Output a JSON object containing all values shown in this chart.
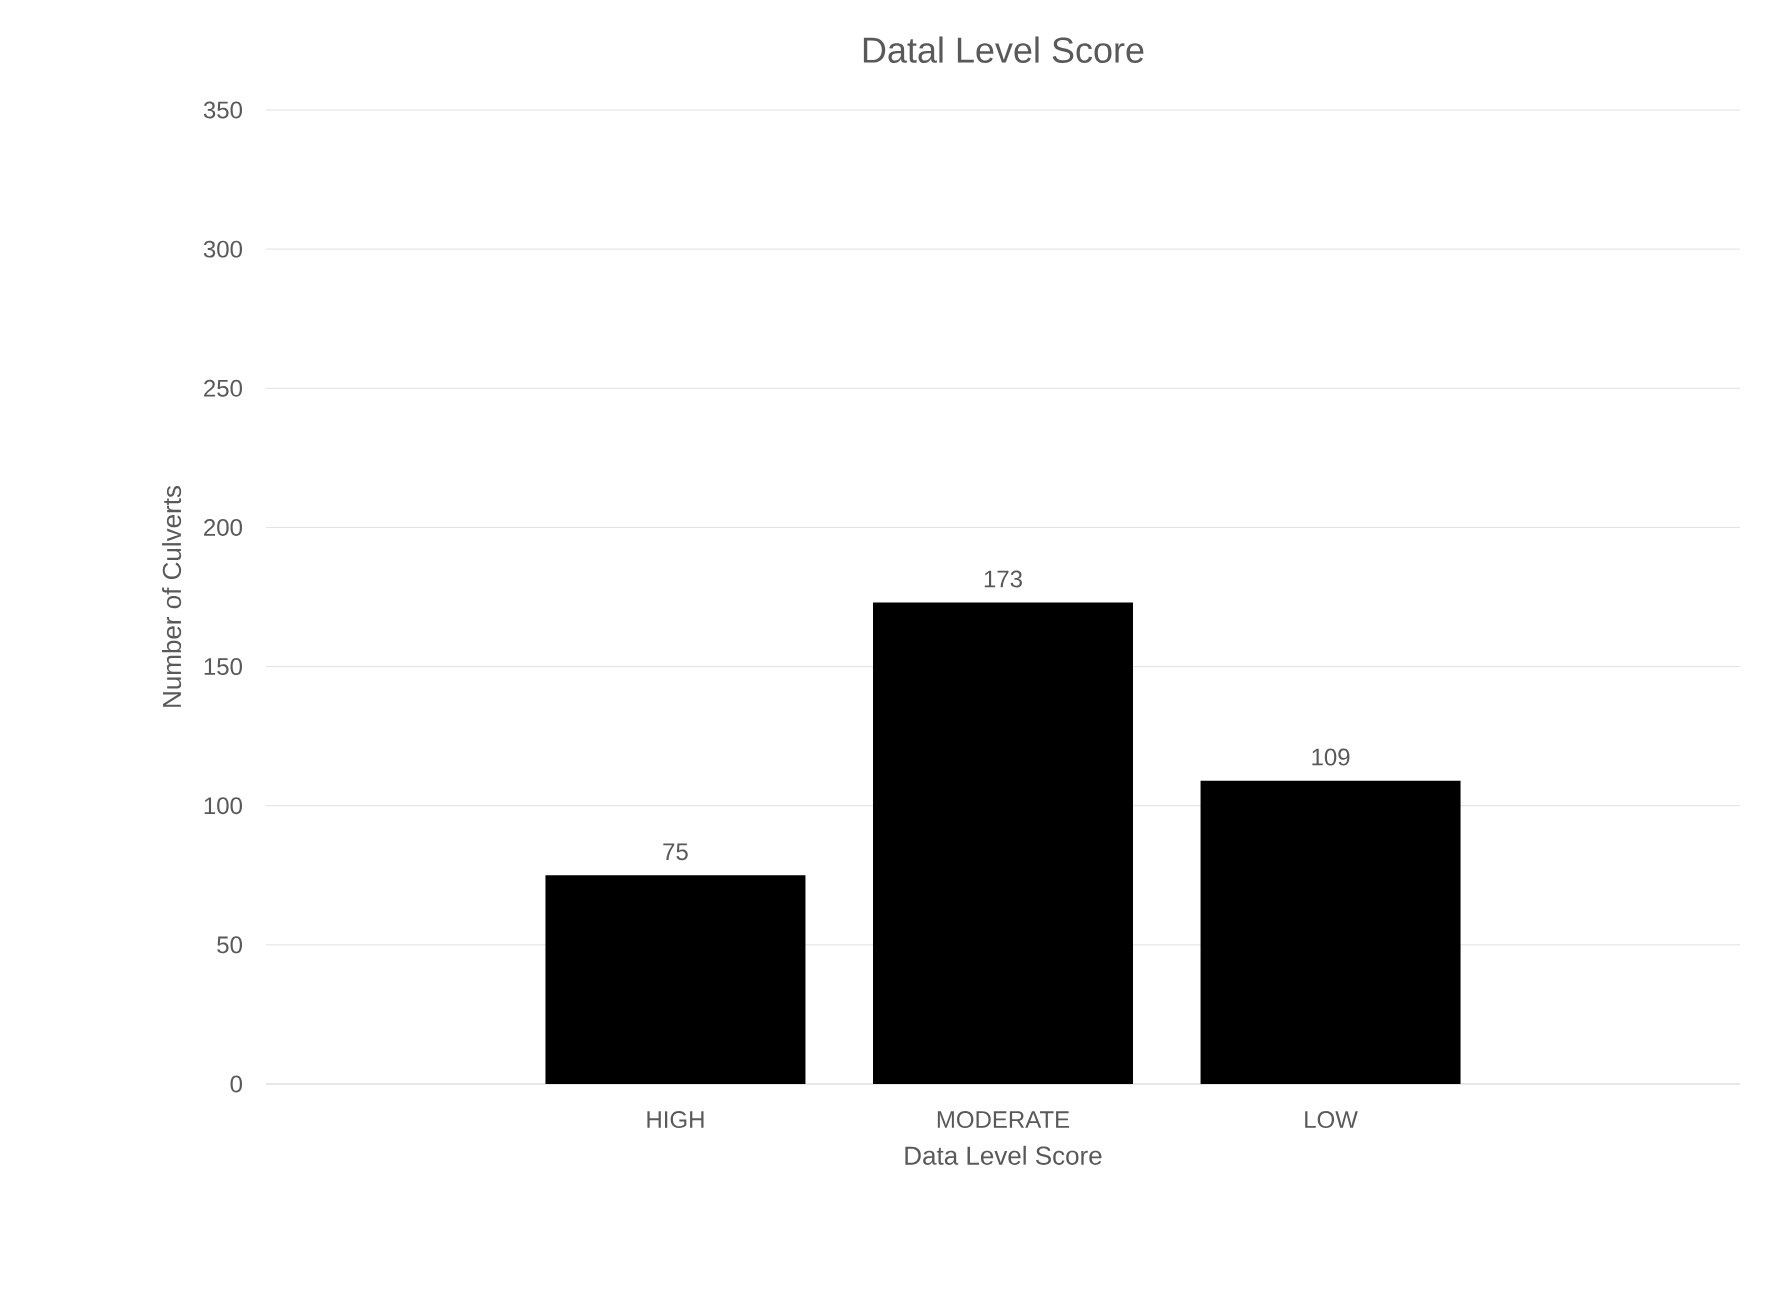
{
  "chart_data": {
    "type": "bar",
    "title": "Datal Level Score",
    "xlabel": "Data Level Score",
    "ylabel": "Number of Culverts",
    "categories": [
      "HIGH",
      "MODERATE",
      "LOW"
    ],
    "values": [
      75,
      173,
      109
    ],
    "color": "#000000",
    "ylim": [
      0,
      350
    ],
    "yticks": [
      0,
      50,
      100,
      150,
      200,
      250,
      300,
      350
    ],
    "grid": "y",
    "data_labels": true
  }
}
